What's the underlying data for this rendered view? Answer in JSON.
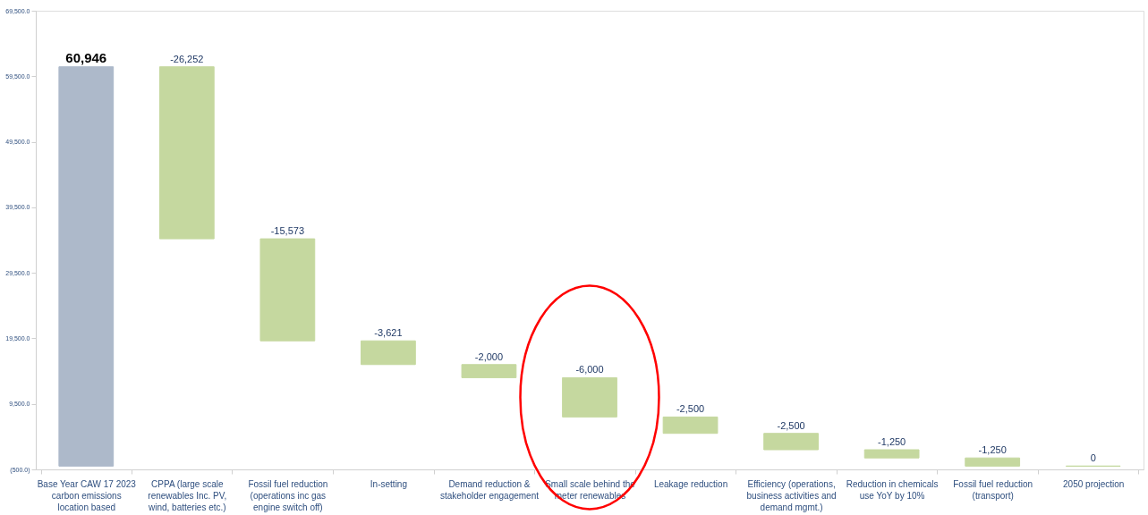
{
  "chart_data": {
    "type": "bar",
    "categories": [
      "Base Year CAW 17 2023 carbon emissions location based",
      "CPPA (large scale renewables Inc. PV, wind, batteries etc.)",
      "Fossil fuel reduction (operations inc gas engine switch off)",
      "In-setting",
      "Demand reduction & stakeholder engagement",
      "Small scale behind the meter renewables",
      "Leakage reduction",
      "Efficiency (operations, business activities and demand mgmt.)",
      "Reduction in chemicals use YoY by 10%",
      "Fossil fuel reduction (transport)",
      "2050 projection"
    ],
    "values": [
      60946,
      -26252,
      -15573,
      -3621,
      -2000,
      -6000,
      -2500,
      -2500,
      -1250,
      -1250,
      0
    ],
    "base": [
      0,
      60946,
      34694,
      19121,
      15500,
      13500,
      7500,
      5000,
      2500,
      1250,
      0
    ],
    "colors": [
      "#adb9ca",
      "#c5d89f",
      "#c5d89f",
      "#c5d89f",
      "#c5d89f",
      "#c5d89f",
      "#c5d89f",
      "#c5d89f",
      "#c5d89f",
      "#c5d89f",
      "#c5d89f"
    ],
    "value_labels": [
      "60,946",
      "-26,252",
      "-15,573",
      "-3,621",
      "-2,000",
      "-6,000",
      "-2,500",
      "-2,500",
      "-1,250",
      "-1,250",
      "0"
    ],
    "ylim": [
      -500,
      69500
    ],
    "yticks": [
      {
        "value": -500,
        "label": "(500.0)"
      },
      {
        "value": 9500,
        "label": "9,500.0"
      },
      {
        "value": 19500,
        "label": "19,500.0"
      },
      {
        "value": 29500,
        "label": "29,500.0"
      },
      {
        "value": 39500,
        "label": "39,500.0"
      },
      {
        "value": 49500,
        "label": "49,500.0"
      },
      {
        "value": 59500,
        "label": "59,500.0"
      },
      {
        "value": 69500,
        "label": "69,500.0"
      }
    ],
    "grid": false
  }
}
